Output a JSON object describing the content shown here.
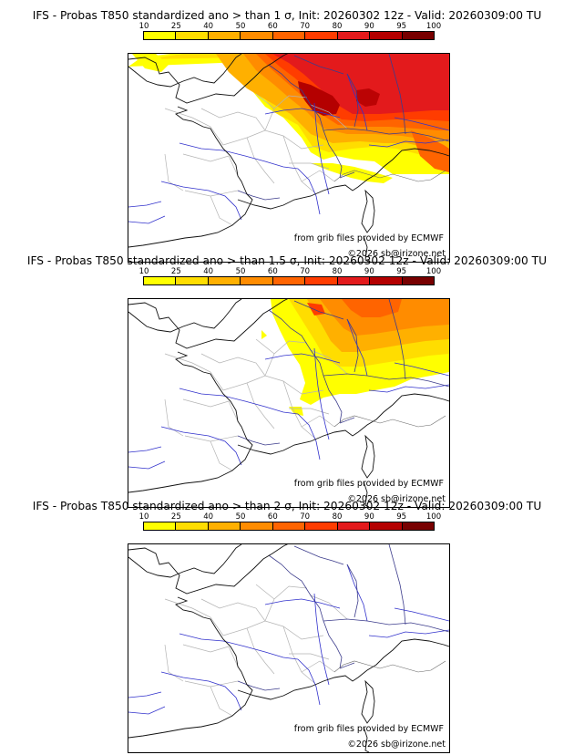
{
  "legend": {
    "ticks": [
      "10",
      "25",
      "40",
      "50",
      "60",
      "70",
      "80",
      "90",
      "95",
      "100"
    ],
    "colors": [
      "#ffff00",
      "#ffdd00",
      "#ffb000",
      "#ff8c00",
      "#ff6400",
      "#ff3c00",
      "#e31a1c",
      "#b40000",
      "#780000"
    ]
  },
  "credits": {
    "source": "from grib files provided by ECMWF",
    "copyright": "©2026 sb@irizone.net"
  },
  "panels": [
    {
      "title": "IFS - Probas T850  standardized ano > than 1 σ, Init: 20260302 12z - Valid: 20260309:00 TU",
      "level": "high"
    },
    {
      "title": "IFS - Probas T850  standardized ano > than 1.5 σ, Init: 20260302 12z - Valid: 20260309:00 TU",
      "level": "mid"
    },
    {
      "title": "IFS - Probas T850  standardized ano > than 2 σ, Init: 20260302 12z - Valid: 20260309:00 TU",
      "level": "none"
    }
  ]
}
